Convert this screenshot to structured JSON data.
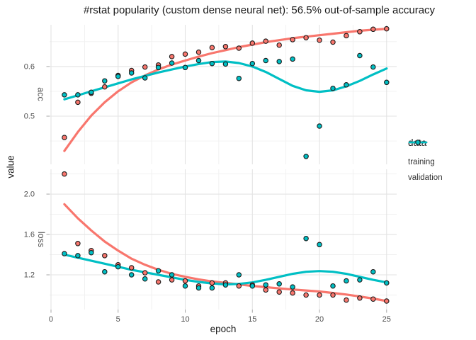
{
  "chart_data": {
    "type": "scatter",
    "title": "#rstat popularity (custom dense neural net): 56.5% out-of-sample accuracy",
    "xlabel": "epoch",
    "ylabel": "value",
    "legend_title": "data",
    "legend_position": "right",
    "grid": true,
    "x_ticks": [
      0,
      5,
      10,
      15,
      20,
      25
    ],
    "x_minor_ticks": [
      2.5,
      7.5,
      12.5,
      17.5,
      22.5
    ],
    "xlim": [
      -0.105,
      25.75
    ],
    "epochs": [
      1,
      2,
      3,
      4,
      5,
      6,
      7,
      8,
      9,
      10,
      11,
      12,
      13,
      14,
      15,
      16,
      17,
      18,
      19,
      20,
      21,
      22,
      23,
      24,
      25
    ],
    "colors": {
      "training": "#F8766D",
      "validation": "#00BFC4"
    },
    "point_outline": "#1a1a1a",
    "grid_major_color": "#e3e3e3",
    "grid_minor_color": "#f0f0f0",
    "tick_mark_color": "#a8a8a8",
    "tick_label_color": "#4d4d4d",
    "facets": [
      {
        "label": "acc",
        "ylim": [
          0.403,
          0.684
        ],
        "y_ticks": [
          0.5,
          0.6
        ],
        "y_tick_labels": [
          "0.5",
          "0.6"
        ],
        "y_minor_ticks": [
          0.45,
          0.55,
          0.65
        ],
        "series": [
          {
            "name": "training",
            "points": [
              0.457,
              0.528,
              0.546,
              0.559,
              0.582,
              0.592,
              0.599,
              0.603,
              0.62,
              0.625,
              0.629,
              0.638,
              0.64,
              0.637,
              0.647,
              0.651,
              0.643,
              0.654,
              0.658,
              0.653,
              0.649,
              0.662,
              0.67,
              0.675,
              0.676
            ],
            "smooth": [
              0.43,
              0.468,
              0.501,
              0.528,
              0.55,
              0.568,
              0.582,
              0.594,
              0.604,
              0.612,
              0.62,
              0.627,
              0.633,
              0.639,
              0.644,
              0.649,
              0.653,
              0.657,
              0.66,
              0.663,
              0.666,
              0.669,
              0.672,
              0.674,
              0.676
            ]
          },
          {
            "name": "validation",
            "points": [
              0.543,
              0.543,
              0.548,
              0.571,
              0.58,
              0.587,
              0.577,
              0.598,
              0.607,
              0.598,
              0.612,
              0.606,
              0.605,
              0.576,
              0.606,
              0.612,
              0.61,
              0.615,
              0.419,
              0.48,
              0.556,
              0.563,
              0.622,
              0.599,
              0.568
            ],
            "smooth": [
              0.534,
              0.542,
              0.55,
              0.558,
              0.566,
              0.574,
              0.581,
              0.588,
              0.594,
              0.6,
              0.605,
              0.609,
              0.61,
              0.607,
              0.6,
              0.589,
              0.575,
              0.561,
              0.552,
              0.549,
              0.552,
              0.56,
              0.571,
              0.584,
              0.596
            ]
          }
        ]
      },
      {
        "label": "loss",
        "ylim": [
          0.856,
          2.246
        ],
        "y_ticks": [
          1.2,
          1.6,
          2.0
        ],
        "y_tick_labels": [
          "1.2",
          "1.6",
          "2.0"
        ],
        "y_minor_ticks": [
          1.0,
          1.4,
          1.8,
          2.2
        ],
        "series": [
          {
            "name": "training",
            "points": [
              2.2,
              1.51,
              1.44,
              1.39,
              1.3,
              1.27,
              1.22,
              1.13,
              1.15,
              1.14,
              1.09,
              1.12,
              1.12,
              1.09,
              1.1,
              1.05,
              1.03,
              1.02,
              1.0,
              1.0,
              1.0,
              0.95,
              0.97,
              0.96,
              0.94
            ],
            "smooth": [
              1.9,
              1.76,
              1.64,
              1.53,
              1.44,
              1.36,
              1.3,
              1.25,
              1.21,
              1.18,
              1.155,
              1.135,
              1.12,
              1.105,
              1.09,
              1.078,
              1.066,
              1.055,
              1.045,
              1.035,
              1.02,
              1.005,
              0.985,
              0.965,
              0.94
            ]
          },
          {
            "name": "validation",
            "points": [
              1.41,
              1.39,
              1.42,
              1.23,
              1.28,
              1.2,
              1.16,
              1.24,
              1.2,
              1.09,
              1.07,
              1.07,
              1.1,
              1.2,
              1.09,
              1.1,
              1.11,
              1.08,
              1.56,
              1.5,
              1.09,
              1.14,
              1.15,
              1.23,
              1.12
            ],
            "smooth": [
              1.4,
              1.37,
              1.34,
              1.31,
              1.28,
              1.25,
              1.225,
              1.2,
              1.175,
              1.15,
              1.13,
              1.115,
              1.105,
              1.11,
              1.125,
              1.15,
              1.18,
              1.21,
              1.23,
              1.237,
              1.23,
              1.21,
              1.18,
              1.15,
              1.125
            ]
          }
        ]
      }
    ]
  }
}
